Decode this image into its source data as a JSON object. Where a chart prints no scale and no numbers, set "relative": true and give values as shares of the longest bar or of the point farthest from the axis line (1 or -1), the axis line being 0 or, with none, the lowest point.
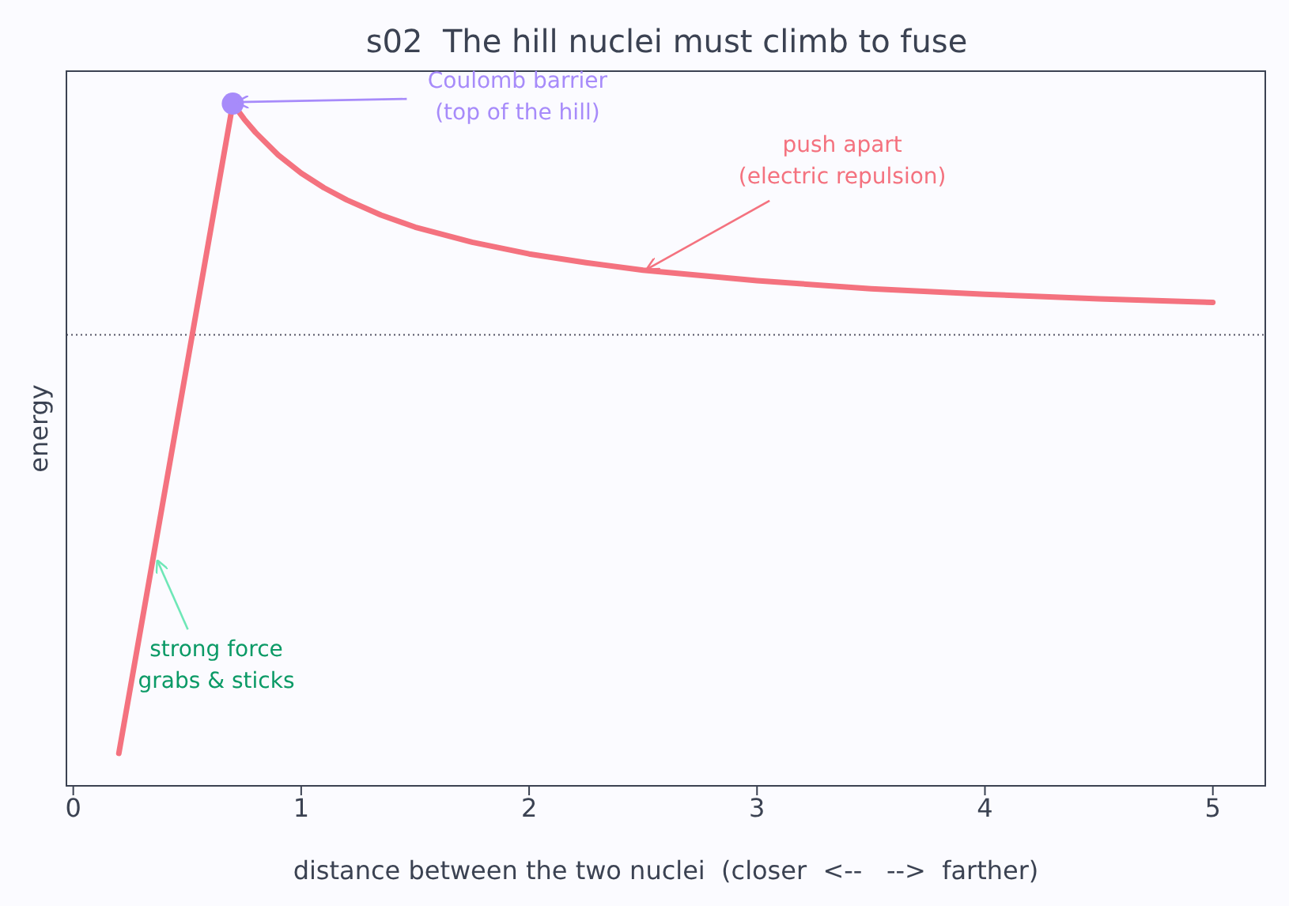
{
  "chart_data": {
    "type": "line",
    "title": "s02  The hill nuclei must climb to fuse",
    "xlabel": "distance between the two nuclei  (closer  <--   -->  farther)",
    "ylabel": "energy",
    "relative": true,
    "tick_labels": "x",
    "xlim": [
      -0.03,
      5.23
    ],
    "xticks": [
      0,
      1,
      2,
      3,
      4,
      5
    ],
    "series": [
      {
        "color": "#f4727f",
        "x": [
          0.2,
          0.7,
          0.75,
          0.8,
          0.9,
          1.0,
          1.1,
          1.2,
          1.35,
          1.5,
          1.75,
          2.0,
          2.25,
          2.5,
          3.0,
          3.5,
          4.0,
          4.5,
          5.0
        ],
        "values": [
          -1,
          0.552,
          0.515,
          0.483,
          0.429,
          0.386,
          0.351,
          0.322,
          0.286,
          0.257,
          0.221,
          0.193,
          0.172,
          0.154,
          0.129,
          0.11,
          0.0965,
          0.0858,
          0.0772
        ]
      },
      {
        "type": "scatter",
        "color": "#a78bfa",
        "x": [
          0.7
        ],
        "values": [
          0.552
        ]
      }
    ],
    "ref_lines": [
      {
        "axis": "y",
        "value": 0,
        "color": "#555566",
        "line_style": "dotted"
      }
    ],
    "annotations": [
      {
        "text": "Coulomb barrier\n(top of the hill)",
        "x": 0.7,
        "y": 0.552
      },
      {
        "text": "push apart\n(electric repulsion)",
        "x": 2.5,
        "y": 0.154
      },
      {
        "text": "strong force\ngrabs & sticks",
        "x": 0.35,
        "y": -0.534
      }
    ]
  }
}
